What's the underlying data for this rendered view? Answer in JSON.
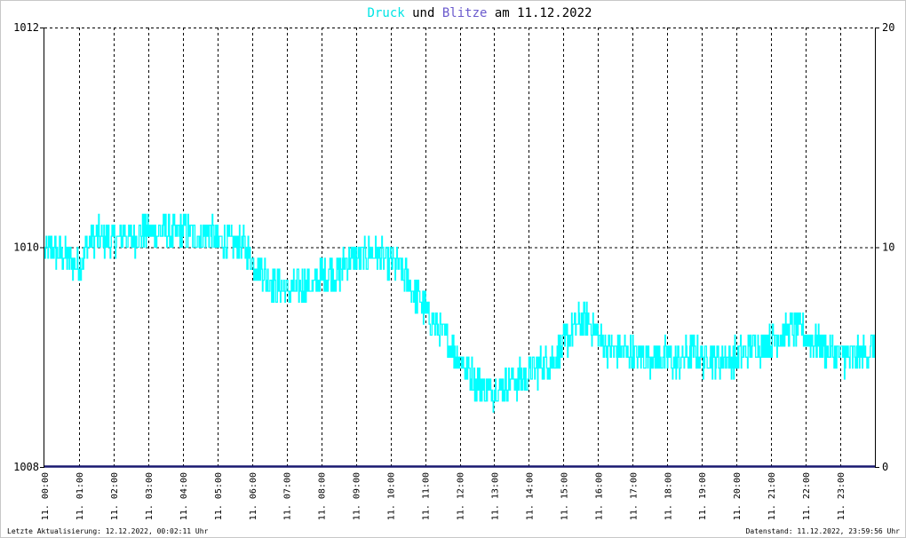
{
  "chart_data": {
    "type": "line",
    "title": {
      "parts": [
        {
          "text": "Druck",
          "color": "#00e5e5"
        },
        {
          "text": " und ",
          "color": "#000000"
        },
        {
          "text": "Blitze",
          "color": "#6a5acd"
        },
        {
          "text": " am 11.12.2022",
          "color": "#000000"
        }
      ]
    },
    "y_left": {
      "min": 1008,
      "max": 1012,
      "ticks": [
        "1008",
        "1010",
        "1012"
      ]
    },
    "y_right": {
      "min": 0,
      "max": 20,
      "ticks": [
        "0",
        "10",
        "20"
      ]
    },
    "x_ticks": [
      "11. 00:00",
      "11. 01:00",
      "11. 02:00",
      "11. 03:00",
      "11. 04:00",
      "11. 05:00",
      "11. 06:00",
      "11. 07:00",
      "11. 08:00",
      "11. 09:00",
      "11. 10:00",
      "11. 11:00",
      "11. 12:00",
      "11. 13:00",
      "11. 14:00",
      "11. 15:00",
      "11. 16:00",
      "11. 17:00",
      "11. 18:00",
      "11. 19:00",
      "11. 20:00",
      "11. 21:00",
      "11. 22:00",
      "11. 23:00"
    ],
    "grid": true,
    "series": [
      {
        "name": "Druck",
        "axis": "left",
        "color": "#00ffff",
        "hours": [
          0,
          0.25,
          0.5,
          0.75,
          1,
          1.25,
          1.5,
          1.75,
          2,
          2.25,
          2.5,
          2.75,
          3,
          3.25,
          3.5,
          3.75,
          4,
          4.25,
          4.5,
          4.75,
          5,
          5.25,
          5.5,
          5.75,
          6,
          6.25,
          6.5,
          6.75,
          7,
          7.25,
          7.5,
          7.75,
          8,
          8.25,
          8.5,
          8.75,
          9,
          9.25,
          9.5,
          9.75,
          10,
          10.25,
          10.5,
          10.75,
          11,
          11.25,
          11.5,
          11.75,
          12,
          12.25,
          12.5,
          12.75,
          13,
          13.25,
          13.5,
          13.75,
          14,
          14.25,
          14.5,
          14.75,
          15,
          15.25,
          15.5,
          15.75,
          16,
          16.25,
          16.5,
          16.75,
          17,
          17.25,
          17.5,
          17.75,
          18,
          18.25,
          18.5,
          18.75,
          19,
          19.25,
          19.5,
          19.75,
          20,
          20.25,
          20.5,
          20.75,
          21,
          21.25,
          21.5,
          21.75,
          22,
          22.25,
          22.5,
          22.75,
          23,
          23.25,
          23.5,
          23.75,
          24
        ],
        "values": [
          1009.98,
          1009.95,
          1009.93,
          1009.88,
          1009.85,
          1010.02,
          1010.1,
          1010.08,
          1010.05,
          1010.12,
          1010.08,
          1010.1,
          1010.15,
          1010.12,
          1010.15,
          1010.1,
          1010.15,
          1010.12,
          1010.1,
          1010.15,
          1010.05,
          1010.05,
          1010.02,
          1010.0,
          1009.9,
          1009.8,
          1009.7,
          1009.62,
          1009.6,
          1009.62,
          1009.65,
          1009.65,
          1009.75,
          1009.78,
          1009.75,
          1009.9,
          1009.9,
          1009.92,
          1009.95,
          1009.9,
          1009.85,
          1009.8,
          1009.7,
          1009.55,
          1009.45,
          1009.3,
          1009.2,
          1009.1,
          1009.0,
          1008.85,
          1008.78,
          1008.7,
          1008.7,
          1008.75,
          1008.78,
          1008.8,
          1008.85,
          1008.9,
          1008.95,
          1009.0,
          1009.1,
          1009.25,
          1009.35,
          1009.3,
          1009.2,
          1009.1,
          1009.05,
          1009.05,
          1009.02,
          1009.0,
          1009.0,
          1009.0,
          1009.0,
          1008.95,
          1009.0,
          1009.05,
          1009.0,
          1009.0,
          1008.98,
          1009.0,
          1009.0,
          1009.05,
          1009.1,
          1009.1,
          1009.15,
          1009.2,
          1009.25,
          1009.25,
          1009.2,
          1009.15,
          1009.1,
          1009.05,
          1009.0,
          1009.0,
          1009.0,
          1009.05,
          1009.1
        ]
      },
      {
        "name": "Blitze",
        "axis": "right",
        "color": "#191970",
        "hours": [
          0,
          24
        ],
        "values": [
          0,
          0
        ]
      }
    ]
  },
  "footer": {
    "left": "Letzte Aktualisierung: 12.12.2022, 00:02:11 Uhr",
    "right": "Datenstand: 11.12.2022, 23:59:56 Uhr"
  }
}
